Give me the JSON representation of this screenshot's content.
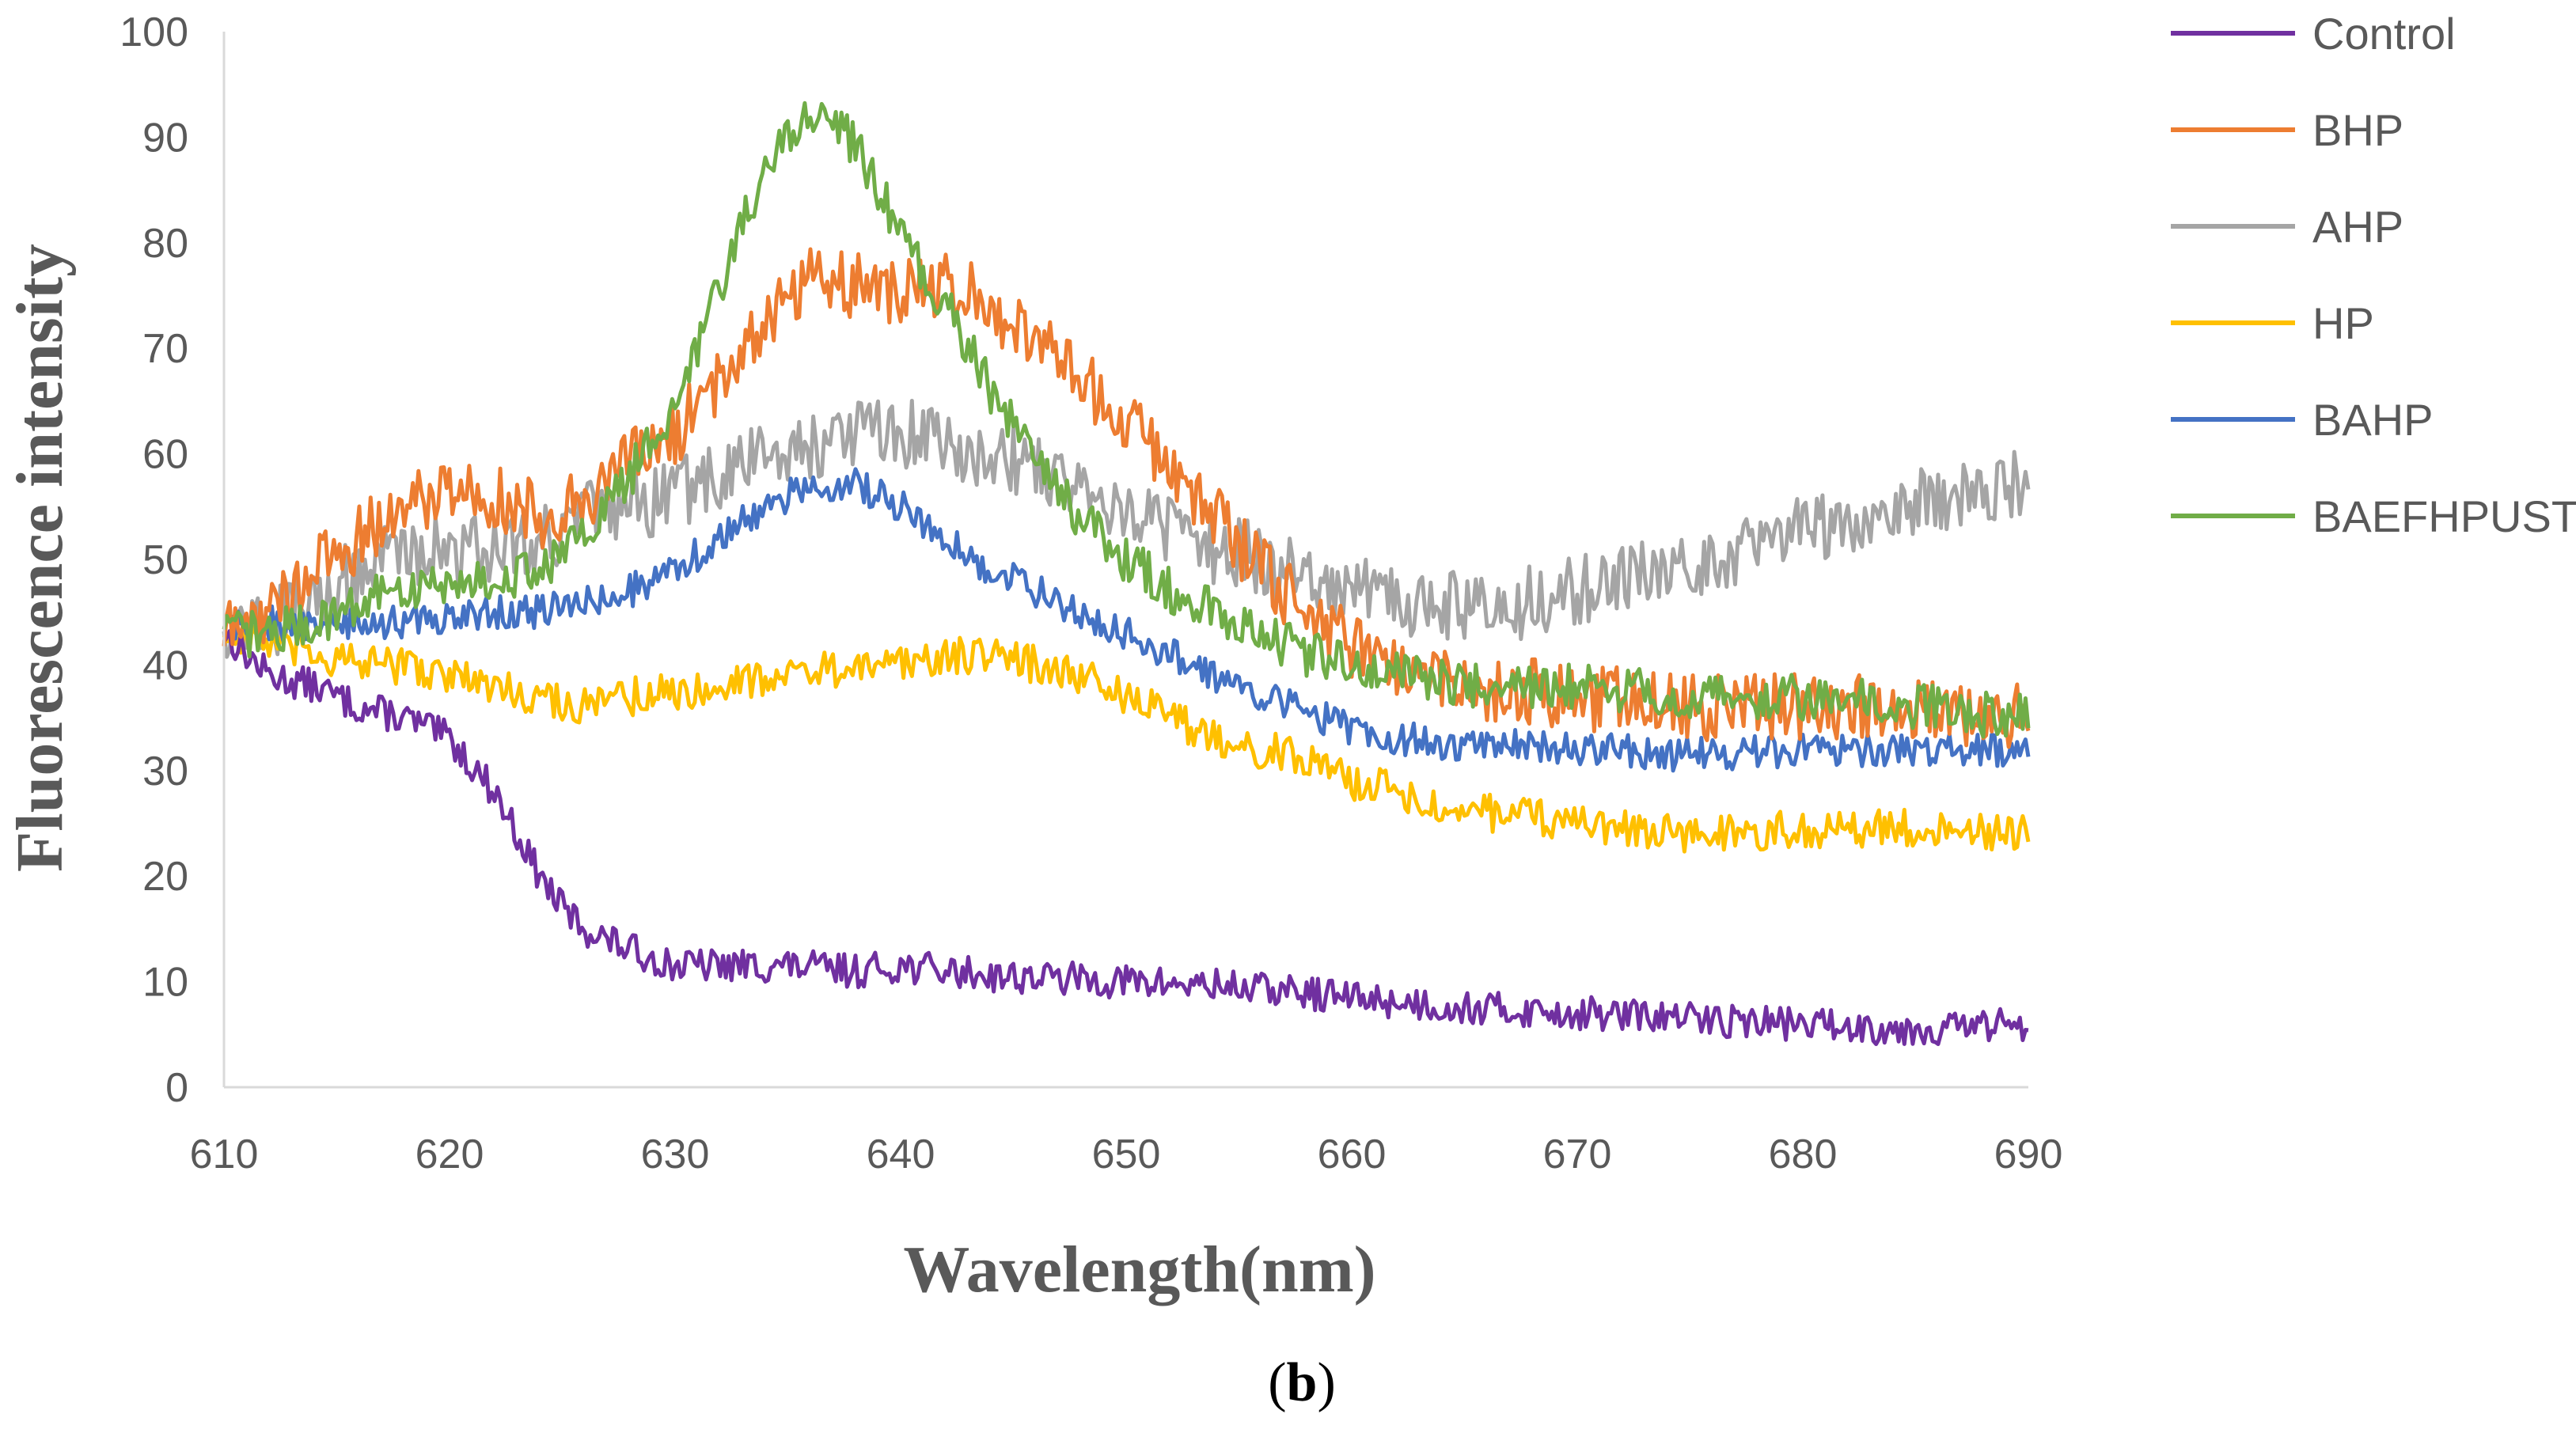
{
  "chart_data": {
    "type": "line",
    "title": "",
    "xlabel": "Wavelength(nm)",
    "ylabel": "Fluorescence intensity",
    "xlim": [
      610,
      690
    ],
    "ylim": [
      0,
      100
    ],
    "xticks": [
      610,
      620,
      630,
      640,
      650,
      660,
      670,
      680,
      690
    ],
    "yticks": [
      0,
      10,
      20,
      30,
      40,
      50,
      60,
      70,
      80,
      90,
      100
    ],
    "grid": false,
    "legend_position": "right",
    "caption": {
      "open": "(",
      "letter": "b",
      "close": ")"
    },
    "series": [
      {
        "name": "Control",
        "color": "#7030A0",
        "x": [
          610,
          612,
          614,
          616,
          618,
          620,
          622,
          623,
          624,
          625,
          626,
          628,
          630,
          632,
          635,
          638,
          640,
          642,
          645,
          650,
          655,
          660,
          665,
          670,
          675,
          680,
          685,
          690
        ],
        "y": [
          43,
          39,
          38,
          36,
          35,
          33,
          28,
          24,
          20,
          17,
          15,
          13,
          11.5,
          11.5,
          11.5,
          11,
          11.5,
          11,
          10.5,
          10,
          9.5,
          8.5,
          7.5,
          7,
          6.5,
          6,
          5.5,
          6
        ]
      },
      {
        "name": "BHP",
        "color": "#ED7D31",
        "x": [
          610,
          612,
          614,
          616,
          618,
          620,
          622,
          624,
          626,
          628,
          630,
          632,
          634,
          636,
          638,
          640,
          642,
          644,
          646,
          648,
          650,
          652,
          654,
          656,
          658,
          660,
          662,
          665,
          670,
          675,
          680,
          685,
          690
        ],
        "y": [
          43,
          45,
          49,
          52,
          55,
          57,
          56,
          54,
          56,
          59,
          62,
          67,
          73,
          77,
          76,
          75,
          76,
          74,
          71,
          67,
          63,
          59,
          54,
          49,
          45,
          42,
          40,
          38,
          37,
          36,
          36,
          36,
          35
        ]
      },
      {
        "name": "AHP",
        "color": "#A5A5A5",
        "x": [
          610,
          612,
          614,
          616,
          618,
          620,
          622,
          624,
          626,
          628,
          630,
          632,
          634,
          636,
          638,
          640,
          642,
          644,
          646,
          648,
          650,
          652,
          654,
          656,
          658,
          660,
          662,
          664,
          666,
          668,
          670,
          672,
          674,
          676,
          678,
          680,
          682,
          684,
          686,
          688,
          690
        ],
        "y": [
          44,
          44,
          46,
          49,
          51,
          51,
          51,
          52,
          54,
          55,
          56,
          58,
          60,
          61,
          62,
          62,
          61,
          60,
          59,
          57,
          55,
          53,
          51,
          50,
          48,
          47,
          46,
          46,
          45,
          46,
          47,
          48,
          49,
          50,
          52,
          53,
          54,
          55,
          56,
          56,
          58
        ]
      },
      {
        "name": "HP",
        "color": "#FFC000",
        "x": [
          610,
          612,
          614,
          616,
          618,
          620,
          622,
          624,
          626,
          628,
          630,
          632,
          634,
          636,
          638,
          640,
          642,
          644,
          646,
          648,
          650,
          652,
          654,
          656,
          658,
          660,
          662,
          664,
          666,
          668,
          670,
          675,
          680,
          685,
          690
        ],
        "y": [
          43,
          42,
          41,
          40,
          40,
          39,
          38,
          37,
          36,
          37,
          37.5,
          38,
          39,
          39.5,
          39.5,
          40,
          41,
          41,
          40,
          39,
          37,
          35,
          33,
          32,
          31,
          29,
          28,
          27,
          26,
          25.5,
          25,
          24,
          24.5,
          24.5,
          24
        ]
      },
      {
        "name": "BAHP",
        "color": "#4472C4",
        "x": [
          610,
          612,
          614,
          616,
          618,
          620,
          622,
          624,
          626,
          628,
          630,
          632,
          634,
          636,
          638,
          640,
          642,
          644,
          646,
          648,
          650,
          652,
          654,
          656,
          658,
          660,
          662,
          665,
          670,
          675,
          680,
          685,
          690
        ],
        "y": [
          44,
          44,
          43.5,
          44,
          44,
          44.5,
          45,
          45,
          46,
          47,
          49,
          52,
          55,
          57,
          57,
          55,
          52,
          49,
          47,
          45,
          43,
          41,
          39,
          37,
          35.5,
          34,
          33,
          32.5,
          32,
          31.5,
          32,
          32,
          32
        ]
      },
      {
        "name": "BAEFHPUST",
        "color": "#70AD47",
        "x": [
          610,
          612,
          614,
          616,
          618,
          620,
          622,
          624,
          626,
          627,
          628,
          629,
          630,
          631,
          632,
          633,
          634,
          635,
          636,
          637,
          638,
          639,
          640,
          641,
          642,
          644,
          646,
          648,
          650,
          652,
          654,
          656,
          658,
          660,
          662,
          665,
          670,
          675,
          680,
          685,
          690
        ],
        "y": [
          43,
          43,
          44,
          46,
          47,
          48,
          48,
          49,
          52,
          55,
          58,
          61,
          65,
          70,
          76,
          82,
          87,
          90,
          92,
          92,
          89,
          85,
          81,
          77,
          74,
          66,
          59,
          54,
          50,
          47,
          45,
          43,
          41,
          40,
          39,
          38,
          38,
          37,
          37,
          36,
          35
        ]
      }
    ]
  }
}
